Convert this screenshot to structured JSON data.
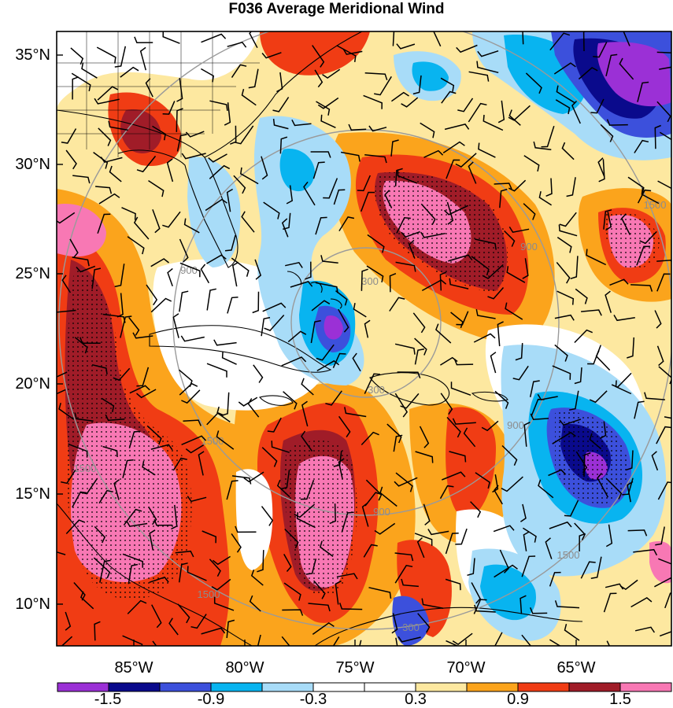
{
  "title": "F036 Average Meridional Wind",
  "lat_labels": [
    "35°N",
    "30°N",
    "25°N",
    "20°N",
    "15°N",
    "10°N"
  ],
  "lon_labels": [
    "85°W",
    "80°W",
    "75°W",
    "70°W",
    "65°W"
  ],
  "colorbar": {
    "colors": [
      "#9b30d6",
      "#0a0a8c",
      "#3c50dc",
      "#08b4f0",
      "#a8dcf8",
      "#ffffff",
      "#ffffff",
      "#fde8a0",
      "#fba41c",
      "#f03c14",
      "#a01c28",
      "#f878b4"
    ],
    "labels": [
      "-1.5",
      "-0.9",
      "-0.3",
      "0.3",
      "0.9",
      "1.5"
    ]
  },
  "range_rings": {
    "labels": [
      "300",
      "300",
      "900",
      "900",
      "900",
      "1500",
      "1500",
      "1500",
      "1500",
      "1500",
      "900",
      "300"
    ]
  }
}
